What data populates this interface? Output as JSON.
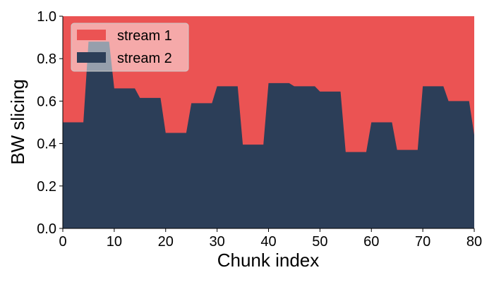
{
  "chart_data": {
    "type": "area",
    "stacked": true,
    "normalized": true,
    "xlabel": "Chunk index",
    "ylabel": "BW slicing",
    "xlim": [
      0,
      80
    ],
    "ylim": [
      0,
      1
    ],
    "xticks": [
      0,
      10,
      20,
      30,
      40,
      50,
      60,
      70,
      80
    ],
    "xtick_labels": [
      "0",
      "10",
      "20",
      "30",
      "40",
      "50",
      "60",
      "70",
      "80"
    ],
    "yticks": [
      0,
      0.2,
      0.4,
      0.6,
      0.8,
      1
    ],
    "ytick_labels": [
      "0.0",
      "0.2",
      "0.4",
      "0.6",
      "0.8",
      "1.0"
    ],
    "grid": false,
    "legend_position": "top-left",
    "series": [
      {
        "name": "stream 1",
        "color": "#eb5353",
        "fill": "remainder to 1.0",
        "legend_label": "stream 1"
      },
      {
        "name": "stream 2",
        "color": "#2c3e58",
        "legend_label": "stream 2",
        "x": [
          0,
          4,
          5,
          9,
          10,
          14,
          15,
          19,
          20,
          24,
          25,
          29,
          30,
          34,
          35,
          39,
          40,
          44,
          45,
          49,
          50,
          54,
          55,
          59,
          60,
          64,
          65,
          69,
          70,
          74,
          75,
          79,
          80
        ],
        "y": [
          0.5,
          0.5,
          0.88,
          0.88,
          0.66,
          0.66,
          0.615,
          0.615,
          0.45,
          0.45,
          0.59,
          0.59,
          0.67,
          0.67,
          0.395,
          0.395,
          0.685,
          0.685,
          0.67,
          0.67,
          0.645,
          0.645,
          0.36,
          0.36,
          0.5,
          0.5,
          0.37,
          0.37,
          0.67,
          0.67,
          0.6,
          0.6,
          0.44
        ]
      }
    ]
  }
}
